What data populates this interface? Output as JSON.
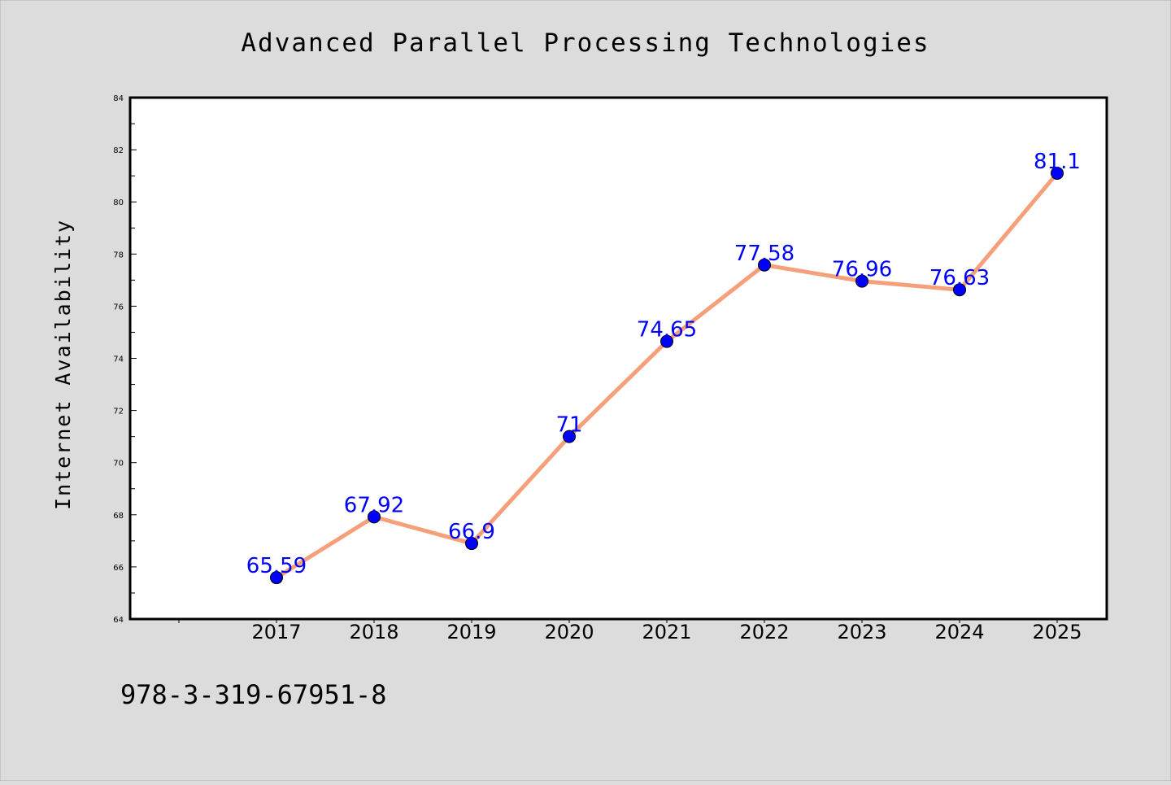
{
  "colors": {
    "background": "#dcdcdc",
    "plot_background": "#ffffff",
    "line": "#f5a07a",
    "marker": "#0000ff",
    "data_label": "#0000ff"
  },
  "footnote": "978-3-319-67951-8",
  "chart_data": {
    "type": "line",
    "title": "Advanced Parallel Processing Technologies",
    "xlabel": "",
    "ylabel": "Internet Availability",
    "x": [
      "2017",
      "2018",
      "2019",
      "2020",
      "2021",
      "2022",
      "2023",
      "2024",
      "2025"
    ],
    "series": [
      {
        "values": [
          65.59,
          67.92,
          66.9,
          71,
          74.65,
          77.58,
          76.96,
          76.63,
          81.1
        ],
        "labels": [
          "65.59",
          "67.92",
          "66.9",
          "71",
          "74.65",
          "77.58",
          "76.96",
          "76.63",
          "81.1"
        ]
      }
    ],
    "ylim": [
      64,
      84
    ],
    "yticks": [
      "64",
      "66",
      "68",
      "70",
      "72",
      "74",
      "76",
      "78",
      "80",
      "82",
      "84"
    ],
    "grid": false,
    "legend": "none"
  }
}
